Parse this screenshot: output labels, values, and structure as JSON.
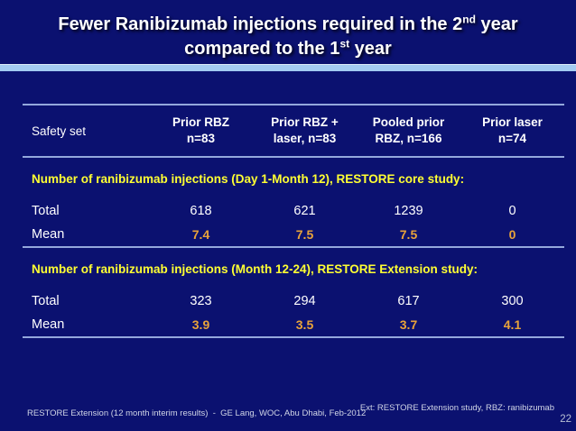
{
  "title": {
    "line1": {
      "pre": "Fewer Ranibizumab injections required in the 2",
      "sup": "nd",
      "post": " year"
    },
    "line2": {
      "pre": "compared to the 1",
      "sup": "st",
      "post": " year"
    }
  },
  "table": {
    "corner_label": "Safety set",
    "columns": [
      {
        "line1": "Prior RBZ",
        "line2": "n=83"
      },
      {
        "line1": "Prior RBZ +",
        "line2": "laser, n=83"
      },
      {
        "line1": "Pooled prior",
        "line2": "RBZ, n=166"
      },
      {
        "line1": "Prior laser",
        "line2": "n=74"
      }
    ],
    "sections": [
      {
        "heading": "Number of ranibizumab injections (Day 1-Month 12), RESTORE core study:",
        "rows": [
          {
            "label": "Total",
            "values": [
              "618",
              "621",
              "1239",
              "0"
            ]
          },
          {
            "label": "Mean",
            "values": [
              "7.4",
              "7.5",
              "7.5",
              "0"
            ]
          }
        ]
      },
      {
        "heading": "Number of ranibizumab injections (Month 12-24), RESTORE Extension study:",
        "rows": [
          {
            "label": "Total",
            "values": [
              "323",
              "294",
              "617",
              "300"
            ]
          },
          {
            "label": "Mean",
            "values": [
              "3.9",
              "3.5",
              "3.7",
              "4.1"
            ]
          }
        ]
      }
    ]
  },
  "footer": {
    "left": "RESTORE Extension (12 month interim results)  -  GE Lang, WOC, Abu Dhabi, Feb-2012",
    "right": "Ext: RESTORE Extension study, RBZ: ranibizumab",
    "page_number": "22"
  },
  "colors": {
    "background": "#0B1170",
    "title_bar": "#A3CBF2",
    "table_rule": "#94A8DC",
    "section_heading": "#FFFF33",
    "mean_value": "#E8A33A",
    "body_text": "#FFFFFF",
    "footer_text": "#D0D5E6"
  }
}
